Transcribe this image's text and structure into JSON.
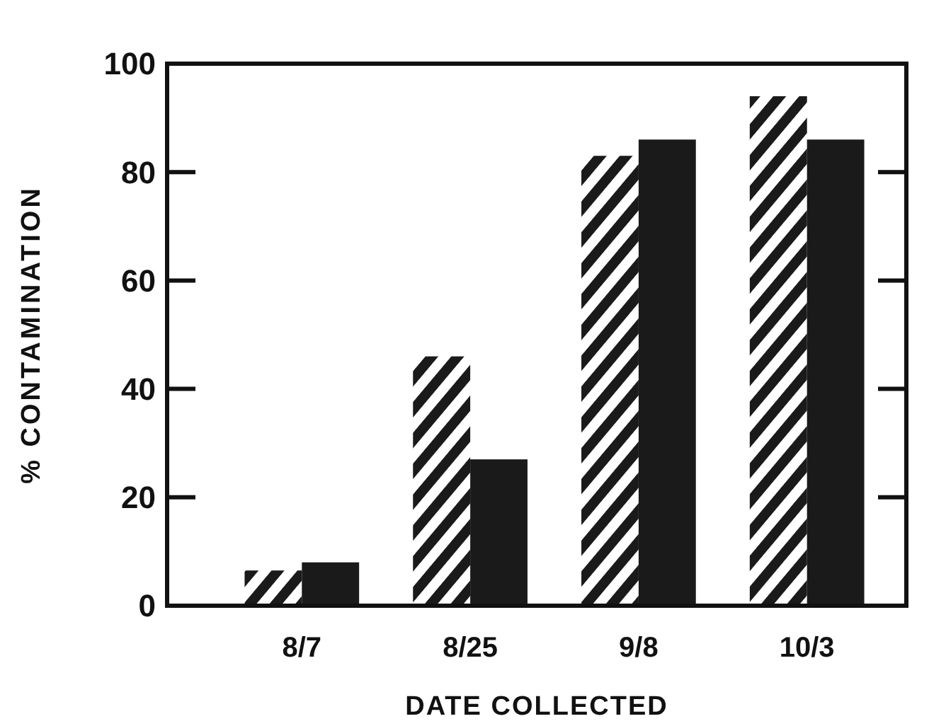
{
  "chart_data": {
    "type": "bar",
    "xlabel": "DATE COLLECTED",
    "ylabel": "% CONTAMINATION",
    "categories": [
      "8/7",
      "8/25",
      "9/8",
      "10/3"
    ],
    "series": [
      {
        "color": "#1a1a1a",
        "values": [
          6.5,
          46,
          83,
          94
        ]
      },
      {
        "color": "#1a1a1a",
        "values": [
          8,
          27,
          86,
          86
        ]
      }
    ],
    "ylim": [
      0,
      100
    ],
    "yticks": [
      0,
      20,
      40,
      60,
      80,
      100
    ]
  }
}
